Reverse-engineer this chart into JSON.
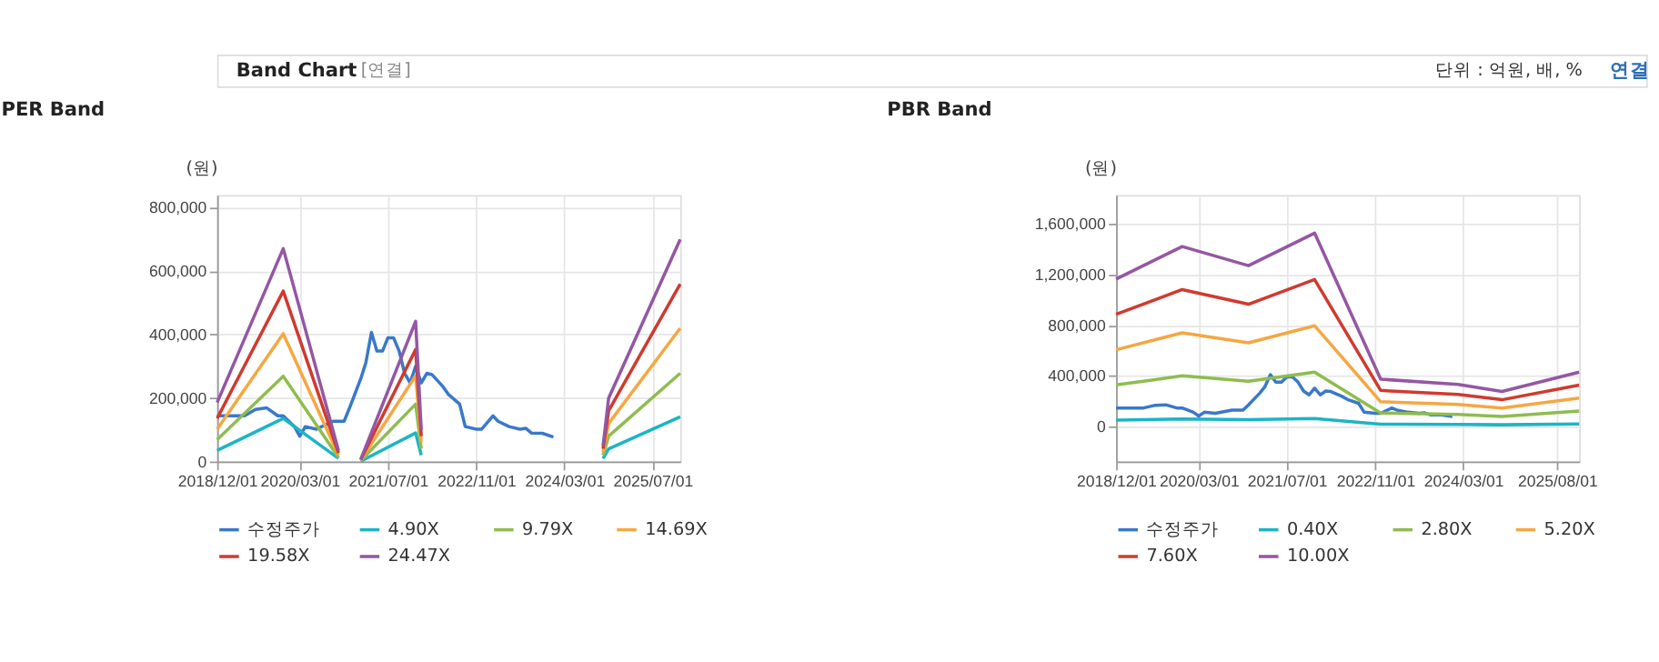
{
  "chart_data": [
    {
      "type": "line",
      "title": "PER Band",
      "ylabel": "(원)",
      "annotations": [
        "Band Chart",
        "[연결]",
        "단위 : 억원, 배, %",
        "연결"
      ],
      "xlim": [
        "2018-12-01",
        "2025-12-01"
      ],
      "xticks": [
        {
          "value": "2018-12-01",
          "label": "2018/12/01"
        },
        {
          "value": "2020-03-01",
          "label": "2020/03/01"
        },
        {
          "value": "2021-07-01",
          "label": "2021/07/01"
        },
        {
          "value": "2022-11-01",
          "label": "2022/11/01"
        },
        {
          "value": "2024-03-01",
          "label": "2024/03/01"
        },
        {
          "value": "2025-07-01",
          "label": "2025/07/01"
        }
      ],
      "ylim": [
        0,
        840000
      ],
      "yticks": [
        0,
        {
          "value": 200000,
          "label": "200,000"
        },
        {
          "value": 400000,
          "label": "400,000"
        },
        {
          "value": 600000,
          "label": "600,000"
        },
        {
          "value": 800000,
          "label": "800,000"
        }
      ],
      "grid": true,
      "legend": "bottom",
      "marker": "none",
      "line_style": "solid",
      "series": [
        {
          "name": "수정주가",
          "color": "#3a78c9",
          "x": [
            "2018-12",
            "2019-05",
            "2019-07",
            "2019-09",
            "2019-11",
            "2019-12",
            "2020-02",
            "2020-03",
            "2020-04",
            "2020-06",
            "2020-09",
            "2020-11",
            "2020-12",
            "2021-02",
            "2021-03",
            "2021-04",
            "2021-05",
            "2021-06",
            "2021-07",
            "2021-08",
            "2021-09",
            "2021-10",
            "2021-11",
            "2021-12",
            "2022-01",
            "2022-02",
            "2022-03",
            "2022-05",
            "2022-06",
            "2022-08",
            "2022-09",
            "2022-11",
            "2022-12",
            "2023-02",
            "2023-03",
            "2023-05",
            "2023-07",
            "2023-08",
            "2023-09",
            "2023-11",
            "2024-01"
          ],
          "values": [
            144000,
            144000,
            164000,
            169000,
            144000,
            144000,
            110000,
            80000,
            110000,
            102000,
            127000,
            127000,
            169000,
            261000,
            311000,
            407000,
            348000,
            348000,
            390000,
            390000,
            348000,
            278000,
            248000,
            300000,
            248000,
            278000,
            274000,
            236000,
            211000,
            181000,
            110000,
            102000,
            102000,
            144000,
            127000,
            110000,
            102000,
            105000,
            90000,
            89000,
            77000
          ]
        },
        {
          "name": "4.90X",
          "color": "#1bb5c5",
          "x": [
            "2018-12",
            "2019-12",
            "2020-10",
            "2021-01",
            "2021-02",
            "2021-12",
            "2022-01",
            "2022-02",
            "2024-10",
            "2024-11",
            "2025-12"
          ],
          "values": [
            35000,
            136000,
            10000,
            null,
            1000,
            90000,
            20000,
            null,
            10000,
            40000,
            141000
          ]
        },
        {
          "name": "9.79X",
          "color": "#8fbc4f",
          "x": [
            "2018-12",
            "2019-12",
            "2020-10",
            "2021-01",
            "2021-02",
            "2021-12",
            "2022-01",
            "2022-02",
            "2024-10",
            "2024-11",
            "2025-12"
          ],
          "values": [
            69000,
            269000,
            13000,
            null,
            3000,
            181000,
            40000,
            null,
            20000,
            80000,
            278000
          ]
        },
        {
          "name": "14.69X",
          "color": "#f5a742",
          "x": [
            "2018-12",
            "2019-12",
            "2020-10",
            "2021-01",
            "2021-02",
            "2021-12",
            "2022-01",
            "2022-02",
            "2024-10",
            "2024-11",
            "2025-12"
          ],
          "values": [
            102000,
            403000,
            20000,
            null,
            4000,
            270000,
            60000,
            null,
            30000,
            120000,
            420000
          ]
        },
        {
          "name": "19.58X",
          "color": "#d03a2f",
          "x": [
            "2018-12",
            "2019-12",
            "2020-10",
            "2021-01",
            "2021-02",
            "2021-12",
            "2022-01",
            "2022-02",
            "2024-10",
            "2024-11",
            "2025-12"
          ],
          "values": [
            136000,
            537000,
            27000,
            null,
            6000,
            353000,
            80000,
            null,
            40000,
            160000,
            559000
          ]
        },
        {
          "name": "24.47X",
          "color": "#9457a3",
          "x": [
            "2018-12",
            "2019-12",
            "2020-10",
            "2021-01",
            "2021-02",
            "2021-12",
            "2022-01",
            "2022-02",
            "2024-10",
            "2024-11",
            "2025-12"
          ],
          "values": [
            186000,
            671000,
            35000,
            null,
            7000,
            442000,
            100000,
            null,
            50000,
            200000,
            700000
          ]
        }
      ]
    },
    {
      "type": "line",
      "title": "PBR Band",
      "ylabel": "(원)",
      "xlim": [
        "2018-12-01",
        "2025-12-01"
      ],
      "xticks": [
        {
          "value": "2018-12-01",
          "label": "2018/12/01"
        },
        {
          "value": "2020-03-01",
          "label": "2020/03/01"
        },
        {
          "value": "2021-07-01",
          "label": "2021/07/01"
        },
        {
          "value": "2022-11-01",
          "label": "2022/11/01"
        },
        {
          "value": "2024-03-01",
          "label": "2024/03/01"
        },
        {
          "value": "2025-08-01",
          "label": "2025/08/01"
        }
      ],
      "ylim": [
        -280000,
        1830000
      ],
      "yticks": [
        0,
        {
          "value": 400000,
          "label": "400,000"
        },
        {
          "value": 800000,
          "label": "800,000"
        },
        {
          "value": 1200000,
          "label": "1,200,000"
        },
        {
          "value": 1600000,
          "label": "1,600,000"
        }
      ],
      "grid": true,
      "legend": "bottom",
      "marker": "none",
      "line_style": "solid",
      "series": [
        {
          "name": "수정주가",
          "color": "#3a78c9",
          "x": [
            "2018-12",
            "2019-05",
            "2019-07",
            "2019-09",
            "2019-11",
            "2019-12",
            "2020-02",
            "2020-03",
            "2020-04",
            "2020-06",
            "2020-09",
            "2020-11",
            "2020-12",
            "2021-02",
            "2021-03",
            "2021-04",
            "2021-05",
            "2021-06",
            "2021-07",
            "2021-08",
            "2021-09",
            "2021-10",
            "2021-11",
            "2021-12",
            "2022-01",
            "2022-02",
            "2022-03",
            "2022-05",
            "2022-06",
            "2022-08",
            "2022-09",
            "2022-11",
            "2022-12",
            "2023-02",
            "2023-03",
            "2023-05",
            "2023-07",
            "2023-08",
            "2023-09",
            "2023-11",
            "2024-01"
          ],
          "values": [
            144000,
            144000,
            164000,
            169000,
            144000,
            144000,
            110000,
            80000,
            110000,
            102000,
            127000,
            127000,
            169000,
            261000,
            311000,
            407000,
            348000,
            348000,
            390000,
            390000,
            348000,
            278000,
            248000,
            300000,
            248000,
            278000,
            274000,
            236000,
            211000,
            181000,
            110000,
            102000,
            102000,
            144000,
            127000,
            110000,
            102000,
            105000,
            90000,
            89000,
            77000
          ]
        },
        {
          "name": "0.40X",
          "color": "#1bb5c5",
          "x": [
            "2018-12",
            "2019-12",
            "2020-12",
            "2021-12",
            "2022-12",
            "2024-02",
            "2024-10",
            "2025-12"
          ],
          "values": [
            47000,
            57000,
            51000,
            61000,
            15000,
            13000,
            11000,
            17000
          ]
        },
        {
          "name": "2.80X",
          "color": "#8fbc4f",
          "x": [
            "2018-12",
            "2019-12",
            "2020-12",
            "2021-12",
            "2022-12",
            "2024-02",
            "2024-10",
            "2025-12"
          ],
          "values": [
            326000,
            398000,
            356000,
            428000,
            104000,
            92000,
            77000,
            120000
          ]
        },
        {
          "name": "5.20X",
          "color": "#f5a742",
          "x": [
            "2018-12",
            "2019-12",
            "2020-12",
            "2021-12",
            "2022-12",
            "2024-02",
            "2024-10",
            "2025-12"
          ],
          "values": [
            605000,
            739000,
            660000,
            795000,
            193000,
            172000,
            143000,
            222000
          ]
        },
        {
          "name": "7.60X",
          "color": "#d03a2f",
          "x": [
            "2018-12",
            "2019-12",
            "2020-12",
            "2021-12",
            "2022-12",
            "2024-02",
            "2024-10",
            "2025-12"
          ],
          "values": [
            885000,
            1081000,
            965000,
            1161000,
            283000,
            251000,
            209000,
            325000
          ]
        },
        {
          "name": "10.00X",
          "color": "#9457a3",
          "x": [
            "2018-12",
            "2019-12",
            "2020-12",
            "2021-12",
            "2022-12",
            "2024-02",
            "2024-10",
            "2025-12"
          ],
          "values": [
            1164000,
            1422000,
            1270000,
            1528000,
            372000,
            330000,
            275000,
            428000
          ]
        }
      ]
    }
  ]
}
